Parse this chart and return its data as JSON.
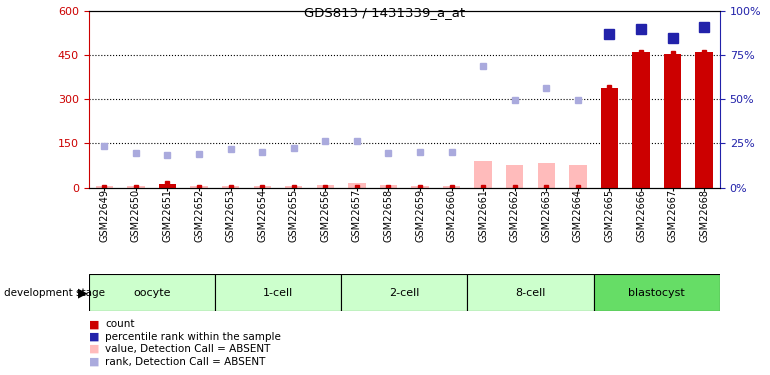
{
  "title": "GDS813 / 1431339_a_at",
  "samples": [
    "GSM22649",
    "GSM22650",
    "GSM22651",
    "GSM22652",
    "GSM22653",
    "GSM22654",
    "GSM22655",
    "GSM22656",
    "GSM22657",
    "GSM22658",
    "GSM22659",
    "GSM22660",
    "GSM22661",
    "GSM22662",
    "GSM22663",
    "GSM22664",
    "GSM22665",
    "GSM22666",
    "GSM22667",
    "GSM22668"
  ],
  "stages": [
    {
      "label": "oocyte",
      "start": 0,
      "end": 4,
      "color": "#ccffcc"
    },
    {
      "label": "1-cell",
      "start": 4,
      "end": 8,
      "color": "#ccffcc"
    },
    {
      "label": "2-cell",
      "start": 8,
      "end": 12,
      "color": "#ccffcc"
    },
    {
      "label": "8-cell",
      "start": 12,
      "end": 16,
      "color": "#ccffcc"
    },
    {
      "label": "blastocyst",
      "start": 16,
      "end": 20,
      "color": "#66dd66"
    }
  ],
  "count_present": [
    false,
    false,
    true,
    false,
    false,
    false,
    false,
    false,
    false,
    false,
    false,
    false,
    false,
    false,
    false,
    false,
    true,
    true,
    true,
    true
  ],
  "value_absent": [
    5,
    5,
    0,
    5,
    5,
    5,
    5,
    10,
    15,
    8,
    5,
    5,
    90,
    75,
    85,
    75,
    0,
    0,
    0,
    0
  ],
  "rank_absent": [
    142,
    118,
    112,
    115,
    130,
    120,
    135,
    157,
    158,
    118,
    122,
    120,
    415,
    298,
    338,
    298,
    0,
    0,
    0,
    0
  ],
  "count_present_values": [
    0,
    0,
    12,
    0,
    0,
    0,
    0,
    0,
    0,
    0,
    0,
    0,
    0,
    0,
    0,
    0,
    340,
    460,
    455,
    460
  ],
  "rank_present_values_pct": [
    0,
    0,
    0,
    0,
    0,
    0,
    0,
    0,
    0,
    0,
    0,
    0,
    0,
    0,
    0,
    0,
    87,
    90,
    85,
    91
  ],
  "left_ylim": [
    0,
    600
  ],
  "left_yticks": [
    0,
    150,
    300,
    450,
    600
  ],
  "right_ylim": [
    0,
    100
  ],
  "right_yticks": [
    0,
    25,
    50,
    75,
    100
  ],
  "color_count": "#cc0000",
  "color_value_absent": "#ffbbbb",
  "color_rank_absent": "#aaaadd",
  "color_rank_present": "#2222aa",
  "dotted_line_color": "#000000",
  "bar_width": 0.55
}
